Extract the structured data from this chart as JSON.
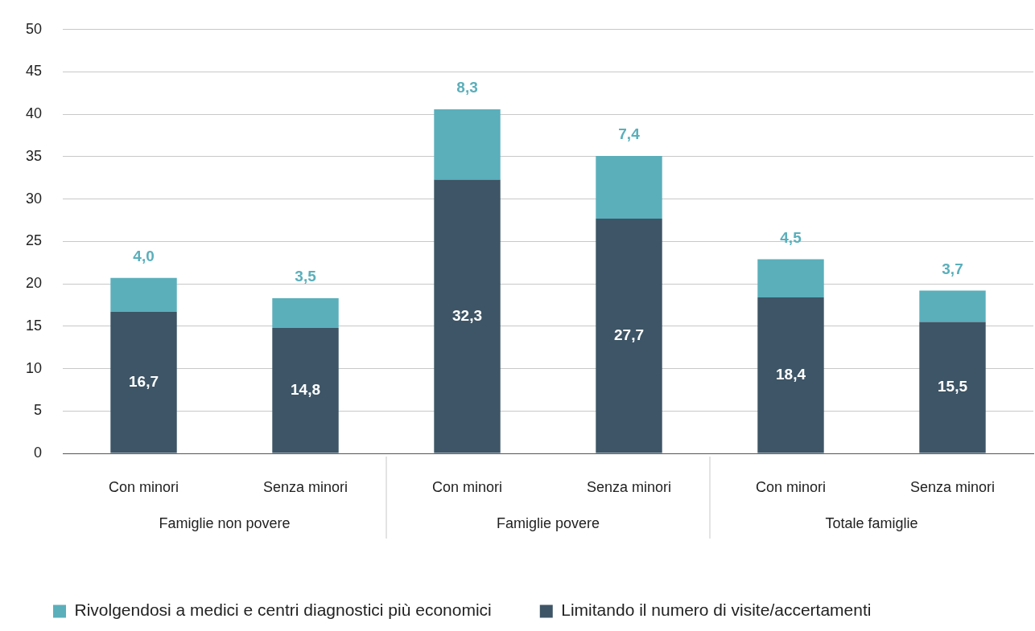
{
  "chart_data": {
    "type": "bar",
    "stacked": true,
    "categories": [
      "Con minori",
      "Senza minori",
      "Con minori",
      "Senza minori",
      "Con minori",
      "Senza minori"
    ],
    "series": [
      {
        "name": "Limitando il numero di visite/accertamenti",
        "color": "#3d5566",
        "values": [
          16.7,
          14.8,
          32.3,
          27.7,
          18.4,
          15.5
        ],
        "value_labels": [
          "16,7",
          "14,8",
          "32,3",
          "27,7",
          "18,4",
          "15,5"
        ]
      },
      {
        "name": "Rivolgendosi a medici e centri diagnostici più economici",
        "color": "#5aafbb",
        "values": [
          4.0,
          3.5,
          8.3,
          7.4,
          4.5,
          3.7
        ],
        "value_labels": [
          "4,0",
          "3,5",
          "8,3",
          "7,4",
          "4,5",
          "3,7"
        ]
      }
    ],
    "annotations": [
      "Famiglie non povere",
      "Famiglie povere",
      "Totale famiglie"
    ],
    "ylim": [
      0,
      50
    ],
    "yticks": [
      0,
      5,
      10,
      15,
      20,
      25,
      30,
      35,
      40,
      45,
      50
    ],
    "grid": "y",
    "legend": "bottom"
  }
}
